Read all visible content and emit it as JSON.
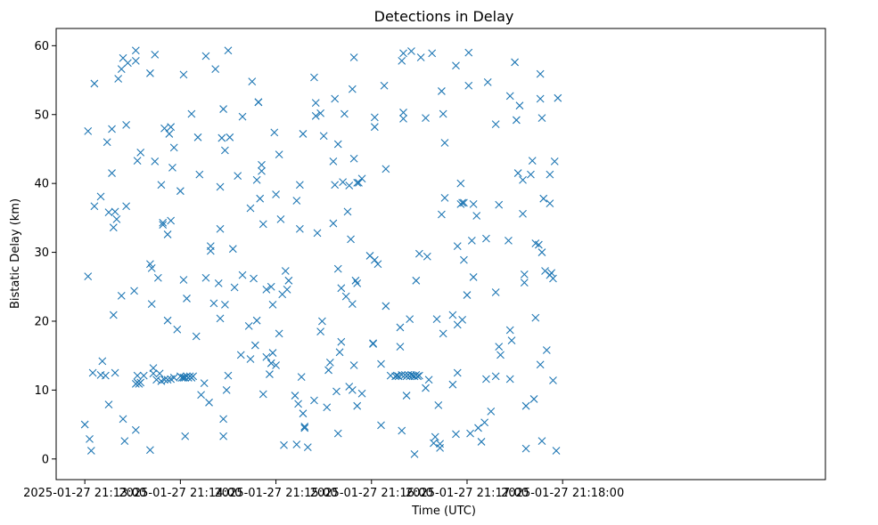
{
  "chart_data": {
    "type": "scatter",
    "title": "Detections in Delay",
    "xlabel": "Time (UTC)",
    "ylabel": "Bistatic Delay (km)",
    "marker": "x",
    "color": "#1f77b4",
    "x_unit": "seconds after 2025-01-27 21:13:00",
    "xlim": [
      -18,
      465
    ],
    "ylim": [
      -3,
      62.5
    ],
    "x_ticks": [
      {
        "value": 0,
        "label": "2025-01-27 21:13:00"
      },
      {
        "value": 60,
        "label": "2025-01-27 21:14:00"
      },
      {
        "value": 120,
        "label": "2025-01-27 21:15:00"
      },
      {
        "value": 180,
        "label": "2025-01-27 21:16:00"
      },
      {
        "value": 240,
        "label": "2025-01-27 21:17:00"
      },
      {
        "value": 300,
        "label": "2025-01-27 21:18:00"
      }
    ],
    "y_ticks": [
      {
        "value": 0,
        "label": "0"
      },
      {
        "value": 10,
        "label": "10"
      },
      {
        "value": 20,
        "label": "20"
      },
      {
        "value": 30,
        "label": "30"
      },
      {
        "value": 40,
        "label": "40"
      },
      {
        "value": 50,
        "label": "50"
      },
      {
        "value": 60,
        "label": "60"
      }
    ],
    "grid": false,
    "legend": "none",
    "points": [
      [
        0,
        5
      ],
      [
        2,
        26.5
      ],
      [
        2,
        47.6
      ],
      [
        3,
        2.9
      ],
      [
        4,
        1.2
      ],
      [
        5,
        12.5
      ],
      [
        6,
        36.7
      ],
      [
        6,
        54.5
      ],
      [
        10,
        12.2
      ],
      [
        10,
        38.1
      ],
      [
        11,
        14.2
      ],
      [
        13,
        12.1
      ],
      [
        14,
        46
      ],
      [
        15,
        7.9
      ],
      [
        15,
        35.8
      ],
      [
        17,
        41.5
      ],
      [
        17,
        47.9
      ],
      [
        18,
        20.9
      ],
      [
        18,
        33.6
      ],
      [
        19,
        35.9
      ],
      [
        19,
        12.5
      ],
      [
        20,
        34.8
      ],
      [
        21,
        55.2
      ],
      [
        23,
        23.7
      ],
      [
        23,
        56.6
      ],
      [
        24,
        5.8
      ],
      [
        24,
        58.2
      ],
      [
        25,
        2.6
      ],
      [
        26,
        48.5
      ],
      [
        26,
        36.7
      ],
      [
        27,
        57.5
      ],
      [
        31,
        24.4
      ],
      [
        32,
        4.2
      ],
      [
        32,
        10.9
      ],
      [
        32,
        57.8
      ],
      [
        32,
        59.3
      ],
      [
        33,
        43.3
      ],
      [
        33,
        12.1
      ],
      [
        33,
        11.1
      ],
      [
        34,
        10.9
      ],
      [
        35,
        11.1
      ],
      [
        35,
        44.5
      ],
      [
        37,
        12.1
      ],
      [
        41,
        1.3
      ],
      [
        41,
        28.3
      ],
      [
        41,
        56
      ],
      [
        42,
        27.7
      ],
      [
        42,
        22.5
      ],
      [
        43,
        13.2
      ],
      [
        43,
        12.4
      ],
      [
        44,
        43.2
      ],
      [
        44,
        58.7
      ],
      [
        45,
        11.5
      ],
      [
        46,
        26.3
      ],
      [
        47,
        12.4
      ],
      [
        48,
        11.3
      ],
      [
        48,
        39.8
      ],
      [
        49,
        34
      ],
      [
        49,
        34.3
      ],
      [
        50,
        11.5
      ],
      [
        50,
        48
      ],
      [
        52,
        11.5
      ],
      [
        52,
        20.1
      ],
      [
        52,
        32.6
      ],
      [
        53,
        47.2
      ],
      [
        54,
        11.6
      ],
      [
        54,
        34.6
      ],
      [
        54,
        48.2
      ],
      [
        55,
        42.3
      ],
      [
        56,
        11.8
      ],
      [
        56,
        45.2
      ],
      [
        58,
        18.8
      ],
      [
        60,
        38.9
      ],
      [
        60,
        12
      ],
      [
        61,
        11.8
      ],
      [
        62,
        11.8
      ],
      [
        62,
        26
      ],
      [
        62,
        55.8
      ],
      [
        63,
        11.8
      ],
      [
        63,
        3.3
      ],
      [
        64,
        12
      ],
      [
        64,
        23.3
      ],
      [
        65,
        11.8
      ],
      [
        66,
        12
      ],
      [
        67,
        11.8
      ],
      [
        67,
        50.1
      ],
      [
        68,
        12
      ],
      [
        70,
        17.8
      ],
      [
        71,
        46.7
      ],
      [
        72,
        41.3
      ],
      [
        73,
        9.3
      ],
      [
        75,
        11
      ],
      [
        76,
        26.3
      ],
      [
        76,
        58.5
      ],
      [
        78,
        8.2
      ],
      [
        79,
        30.2
      ],
      [
        79,
        30.9
      ],
      [
        81,
        22.6
      ],
      [
        82,
        56.6
      ],
      [
        84,
        25.5
      ],
      [
        85,
        39.5
      ],
      [
        85,
        20.4
      ],
      [
        85,
        33.4
      ],
      [
        86,
        46.6
      ],
      [
        87,
        5.8
      ],
      [
        87,
        3.3
      ],
      [
        87,
        50.8
      ],
      [
        88,
        44.8
      ],
      [
        88,
        22.4
      ],
      [
        89,
        10
      ],
      [
        90,
        59.3
      ],
      [
        90,
        12.1
      ],
      [
        91,
        46.7
      ],
      [
        93,
        30.5
      ],
      [
        94,
        24.9
      ],
      [
        96,
        41.1
      ],
      [
        98,
        15.1
      ],
      [
        99,
        26.7
      ],
      [
        99,
        49.7
      ],
      [
        103,
        19.3
      ],
      [
        104,
        14.5
      ],
      [
        104,
        36.4
      ],
      [
        105,
        54.8
      ],
      [
        106,
        26.2
      ],
      [
        107,
        16.5
      ],
      [
        108,
        20.1
      ],
      [
        108,
        40.5
      ],
      [
        109,
        51.8
      ],
      [
        109,
        51.8
      ],
      [
        110,
        37.8
      ],
      [
        111,
        42.7
      ],
      [
        111,
        41.8
      ],
      [
        112,
        9.4
      ],
      [
        112,
        34.1
      ],
      [
        114,
        14.8
      ],
      [
        114,
        24.6
      ],
      [
        116,
        12.3
      ],
      [
        117,
        13.9
      ],
      [
        117,
        25
      ],
      [
        118,
        15.4
      ],
      [
        118,
        22.4
      ],
      [
        119,
        47.4
      ],
      [
        120,
        38.4
      ],
      [
        120,
        13.6
      ],
      [
        122,
        18.2
      ],
      [
        122,
        44.2
      ],
      [
        123,
        34.8
      ],
      [
        124,
        23.9
      ],
      [
        125,
        2
      ],
      [
        126,
        27.3
      ],
      [
        127,
        24.6
      ],
      [
        128,
        25.9
      ],
      [
        132,
        9.2
      ],
      [
        133,
        37.5
      ],
      [
        133,
        2.1
      ],
      [
        134,
        8
      ],
      [
        135,
        33.4
      ],
      [
        135,
        39.8
      ],
      [
        136,
        11.9
      ],
      [
        137,
        47.2
      ],
      [
        137,
        6.6
      ],
      [
        138,
        4.7
      ],
      [
        138,
        4.5
      ],
      [
        140,
        1.7
      ],
      [
        144,
        55.4
      ],
      [
        144,
        8.5
      ],
      [
        145,
        51.7
      ],
      [
        145,
        49.8
      ],
      [
        146,
        32.8
      ],
      [
        148,
        18.5
      ],
      [
        148,
        50.2
      ],
      [
        149,
        20
      ],
      [
        150,
        46.9
      ],
      [
        152,
        7.5
      ],
      [
        153,
        12.9
      ],
      [
        154,
        14
      ],
      [
        156,
        34.2
      ],
      [
        156,
        43.2
      ],
      [
        157,
        39.8
      ],
      [
        157,
        52.3
      ],
      [
        158,
        9.8
      ],
      [
        159,
        3.7
      ],
      [
        159,
        27.6
      ],
      [
        159,
        45.7
      ],
      [
        160,
        15.5
      ],
      [
        161,
        24.8
      ],
      [
        161,
        17
      ],
      [
        162,
        40.2
      ],
      [
        163,
        50.1
      ],
      [
        164,
        23.6
      ],
      [
        165,
        35.9
      ],
      [
        166,
        39.7
      ],
      [
        166,
        10.5
      ],
      [
        167,
        31.9
      ],
      [
        168,
        10
      ],
      [
        168,
        53.7
      ],
      [
        168,
        22.5
      ],
      [
        169,
        13.6
      ],
      [
        169,
        43.6
      ],
      [
        169,
        58.3
      ],
      [
        170,
        25.9
      ],
      [
        171,
        7.7
      ],
      [
        171,
        40.1
      ],
      [
        171,
        25.5
      ],
      [
        172,
        40.1
      ],
      [
        174,
        40.7
      ],
      [
        174,
        9.5
      ],
      [
        179,
        29.5
      ],
      [
        181,
        16.7
      ],
      [
        181,
        16.8
      ],
      [
        182,
        28.9
      ],
      [
        182,
        49.6
      ],
      [
        182,
        48.2
      ],
      [
        184,
        28.3
      ],
      [
        186,
        4.9
      ],
      [
        186,
        13.8
      ],
      [
        188,
        54.2
      ],
      [
        189,
        22.2
      ],
      [
        189,
        42.1
      ],
      [
        192,
        12.1
      ],
      [
        195,
        12
      ],
      [
        196,
        12.1
      ],
      [
        197,
        12
      ],
      [
        198,
        16.3
      ],
      [
        198,
        19.1
      ],
      [
        199,
        12.2
      ],
      [
        199,
        57.8
      ],
      [
        199,
        4.1
      ],
      [
        200,
        49.4
      ],
      [
        200,
        58.9
      ],
      [
        200,
        50.3
      ],
      [
        201,
        12.2
      ],
      [
        202,
        9.2
      ],
      [
        202,
        12
      ],
      [
        203,
        12.2
      ],
      [
        204,
        20.3
      ],
      [
        204,
        12
      ],
      [
        205,
        12.2
      ],
      [
        205,
        59.2
      ],
      [
        206,
        12.1
      ],
      [
        207,
        0.7
      ],
      [
        207,
        12
      ],
      [
        208,
        25.9
      ],
      [
        208,
        12.2
      ],
      [
        209,
        12
      ],
      [
        210,
        29.8
      ],
      [
        210,
        12.1
      ],
      [
        211,
        58.3
      ],
      [
        214,
        49.5
      ],
      [
        214,
        10.3
      ],
      [
        215,
        29.4
      ],
      [
        216,
        11.5
      ],
      [
        218,
        58.9
      ],
      [
        219,
        2.3
      ],
      [
        220,
        3.2
      ],
      [
        221,
        20.3
      ],
      [
        222,
        7.8
      ],
      [
        223,
        1.6
      ],
      [
        223,
        2.2
      ],
      [
        224,
        53.4
      ],
      [
        224,
        35.5
      ],
      [
        225,
        18.2
      ],
      [
        225,
        50.1
      ],
      [
        226,
        37.9
      ],
      [
        226,
        45.9
      ],
      [
        231,
        20.9
      ],
      [
        231,
        10.8
      ],
      [
        233,
        3.6
      ],
      [
        233,
        57.1
      ],
      [
        234,
        30.9
      ],
      [
        234,
        12.5
      ],
      [
        234,
        19.5
      ],
      [
        236,
        40
      ],
      [
        236,
        37
      ],
      [
        237,
        20.2
      ],
      [
        237,
        37.2
      ],
      [
        238,
        28.9
      ],
      [
        238,
        37.2
      ],
      [
        240,
        23.8
      ],
      [
        241,
        54.2
      ],
      [
        241,
        59
      ],
      [
        242,
        3.7
      ],
      [
        243,
        31.7
      ],
      [
        244,
        26.4
      ],
      [
        244,
        37
      ],
      [
        246,
        35.3
      ],
      [
        247,
        4.5
      ],
      [
        249,
        2.5
      ],
      [
        251,
        5.3
      ],
      [
        252,
        11.6
      ],
      [
        252,
        32
      ],
      [
        253,
        54.7
      ],
      [
        255,
        6.9
      ],
      [
        258,
        48.6
      ],
      [
        258,
        12
      ],
      [
        258,
        24.2
      ],
      [
        260,
        16.3
      ],
      [
        260,
        36.9
      ],
      [
        261,
        15.1
      ],
      [
        266,
        31.7
      ],
      [
        267,
        52.7
      ],
      [
        267,
        18.7
      ],
      [
        267,
        11.6
      ],
      [
        268,
        17.2
      ],
      [
        270,
        57.6
      ],
      [
        271,
        49.2
      ],
      [
        272,
        41.5
      ],
      [
        273,
        51.3
      ],
      [
        275,
        40.5
      ],
      [
        275,
        35.6
      ],
      [
        276,
        26.8
      ],
      [
        276,
        25.6
      ],
      [
        277,
        1.5
      ],
      [
        277,
        7.7
      ],
      [
        280,
        41.3
      ],
      [
        281,
        43.3
      ],
      [
        282,
        8.7
      ],
      [
        283,
        20.5
      ],
      [
        283,
        31.3
      ],
      [
        285,
        31.1
      ],
      [
        286,
        13.7
      ],
      [
        286,
        55.9
      ],
      [
        286,
        52.3
      ],
      [
        287,
        49.5
      ],
      [
        287,
        30
      ],
      [
        287,
        2.6
      ],
      [
        288,
        37.8
      ],
      [
        289,
        27.3
      ],
      [
        290,
        15.8
      ],
      [
        292,
        41.3
      ],
      [
        292,
        37.1
      ],
      [
        292,
        26.7
      ],
      [
        293,
        27
      ],
      [
        294,
        26.2
      ],
      [
        294,
        11.4
      ],
      [
        295,
        43.2
      ],
      [
        296,
        1.2
      ],
      [
        297,
        52.4
      ]
    ]
  }
}
